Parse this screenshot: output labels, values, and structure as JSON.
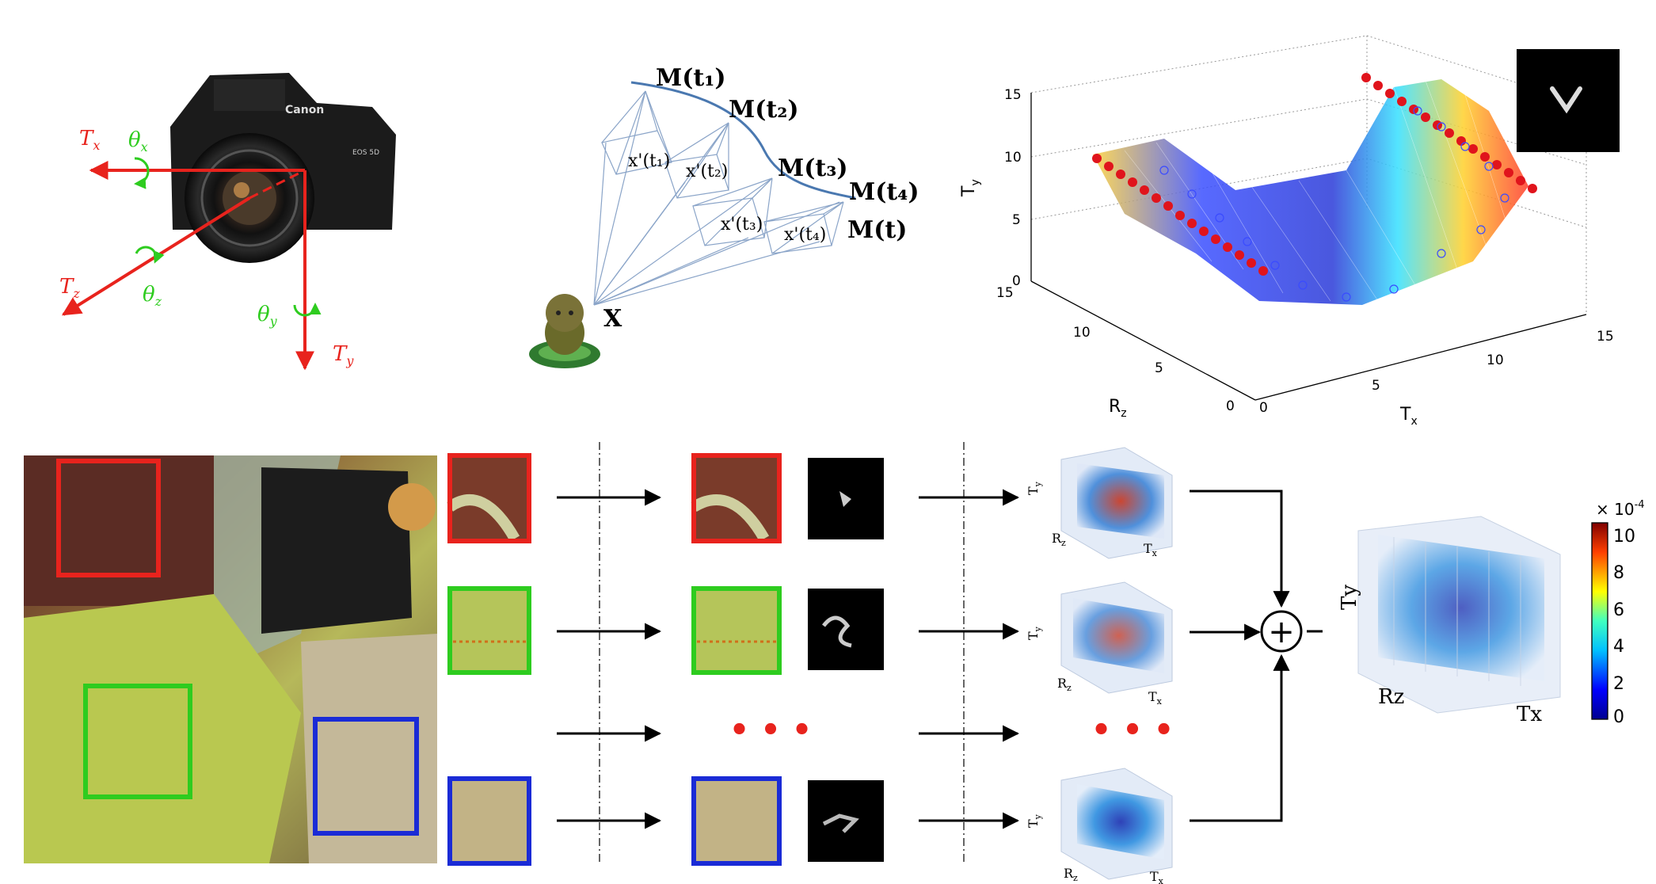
{
  "camera_panel": {
    "brand": "Canon",
    "model": "EOS 5D",
    "axes": {
      "tx": "T",
      "tx_sub": "x",
      "tz": "T",
      "tz_sub": "z",
      "ty": "T",
      "ty_sub": "y",
      "theta_x": "θ",
      "theta_x_sub": "x",
      "theta_z": "θ",
      "theta_z_sub": "z",
      "theta_y": "θ",
      "theta_y_sub": "y"
    }
  },
  "trajectory_panel": {
    "poses": [
      "M(t₁)",
      "M(t₂)",
      "M(t₃)",
      "M(t₄)",
      "M(t)"
    ],
    "projections": [
      "x'(t₁)",
      "x'(t₂)",
      "x'(t₃)",
      "x'(t₄)"
    ],
    "point": "X"
  },
  "surface_panel": {
    "ylabel": "T",
    "ylabel_sub": "y",
    "rz_label": "R",
    "rz_sub": "z",
    "tx_label": "T",
    "tx_sub": "x",
    "y_ticks": [
      "0",
      "5",
      "10",
      "15"
    ],
    "rz_ticks": [
      "0",
      "5",
      "10",
      "15"
    ],
    "tx_ticks": [
      "0",
      "5",
      "10",
      "15"
    ]
  },
  "pipeline": {
    "ellipsis": "• • •",
    "row_labels": {
      "ty": "T",
      "ty_sub": "y",
      "rz": "R",
      "rz_sub": "z",
      "tx": "T",
      "tx_sub": "x"
    },
    "sum_symbol": "+"
  },
  "result_panel": {
    "ylabel": "Ty",
    "rz_label": "Rz",
    "tx_label": "Tx",
    "scale": "× 10",
    "scale_exp": "-4",
    "colorbar_ticks": [
      "10",
      "8",
      "6",
      "4",
      "2",
      "0"
    ]
  },
  "colors": {
    "red": "#e8231d",
    "green": "#2ecc1f",
    "blue": "#1a2bd6",
    "trajectory": "#4a78b0",
    "frustum": "#8aa4c8"
  }
}
